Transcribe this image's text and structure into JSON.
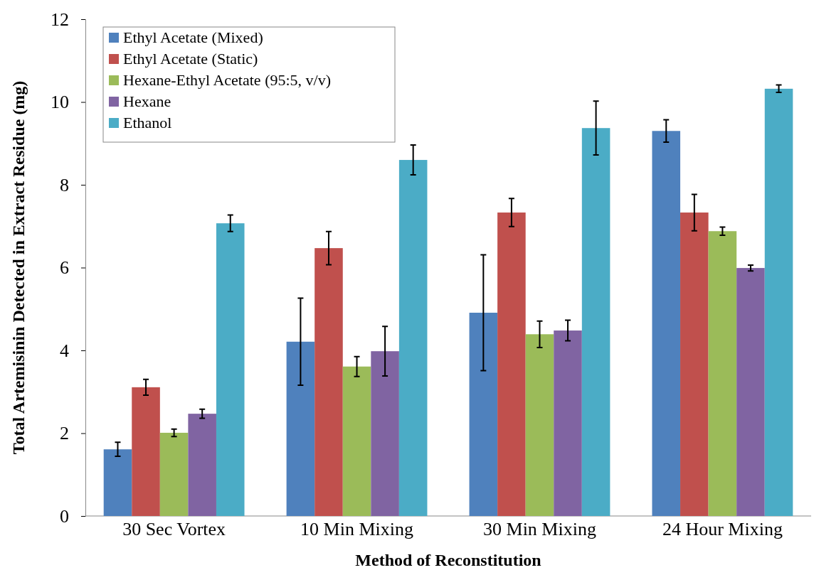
{
  "chart_data": {
    "type": "bar",
    "xlabel": "Method of Reconstitution",
    "ylabel": "Total Artemisinin Detected in Extract Residue (mg)",
    "categories": [
      "30 Sec Vortex",
      "10 Min Mixing",
      "30 Min Mixing",
      "24 Hour Mixing"
    ],
    "series": [
      {
        "name": "Ethyl Acetate (Mixed)",
        "color": "#4f81bd",
        "values": [
          1.61,
          4.21,
          4.91,
          9.3
        ],
        "errors": [
          0.17,
          1.05,
          1.4,
          0.27
        ]
      },
      {
        "name": "Ethyl Acetate (Static)",
        "color": "#c0504d",
        "values": [
          3.11,
          6.47,
          7.33,
          7.33
        ],
        "errors": [
          0.19,
          0.4,
          0.34,
          0.44
        ]
      },
      {
        "name": "Hexane-Ethyl Acetate (95:5, v/v)",
        "color": "#9bbb59",
        "values": [
          2.01,
          3.61,
          4.39,
          6.88
        ],
        "errors": [
          0.09,
          0.24,
          0.32,
          0.1
        ]
      },
      {
        "name": "Hexane",
        "color": "#8064a2",
        "values": [
          2.47,
          3.98,
          4.48,
          5.99
        ],
        "errors": [
          0.11,
          0.6,
          0.25,
          0.07
        ]
      },
      {
        "name": "Ethanol",
        "color": "#4bacc6",
        "values": [
          7.07,
          8.6,
          9.37,
          10.32
        ],
        "errors": [
          0.2,
          0.36,
          0.65,
          0.09
        ]
      }
    ],
    "ylim": [
      0,
      12
    ],
    "yticks": [
      0,
      2,
      4,
      6,
      8,
      10,
      12
    ],
    "grid": false,
    "legend": "top left"
  }
}
